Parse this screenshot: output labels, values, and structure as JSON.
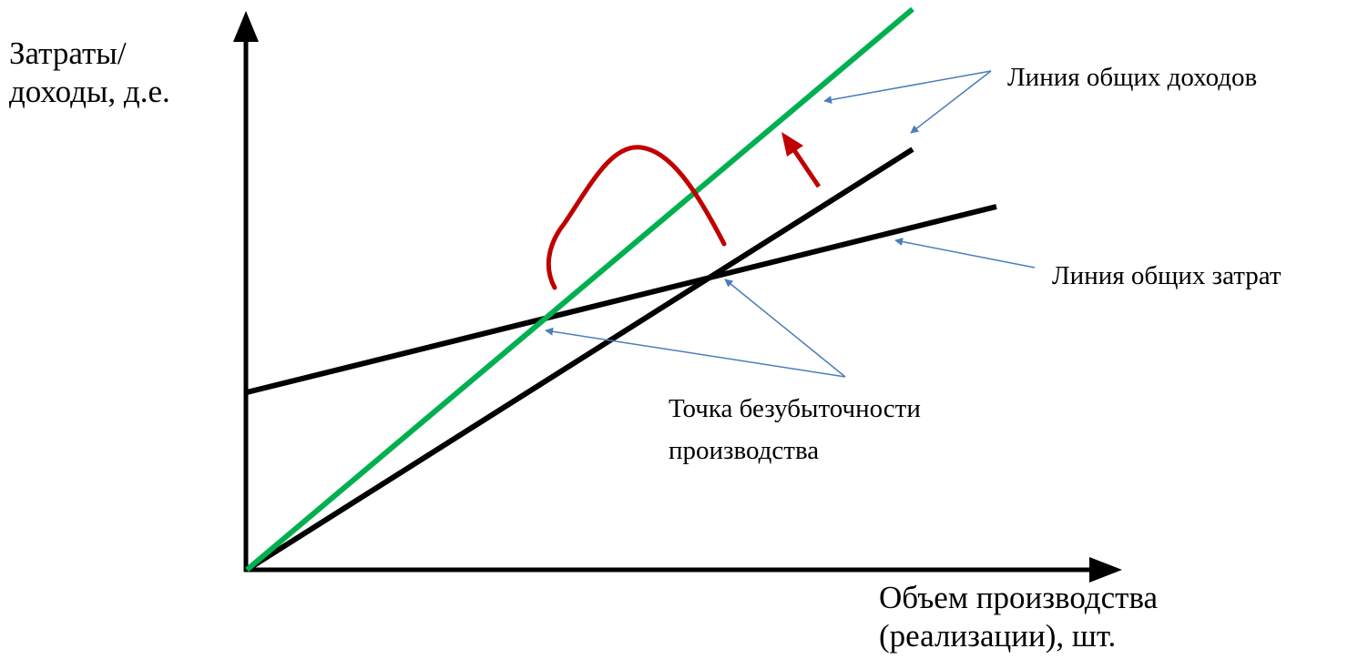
{
  "axes": {
    "y_label_line1": "Затраты/",
    "y_label_line2": "доходы, д.е.",
    "x_label_line1": "Объем производства",
    "x_label_line2": "(реализации), шт."
  },
  "annotations": {
    "revenue_line": "Линия общих доходов",
    "cost_line": "Линия общих затрат",
    "breakeven_line1": "Точка безубыточности",
    "breakeven_line2": "производства"
  },
  "colors": {
    "new_revenue_line": "#00b050",
    "old_revenue_line": "#000000",
    "cost_line": "#000000",
    "shift_arrow": "#c00000",
    "pointer_arrows": "#4a7ebb"
  }
}
